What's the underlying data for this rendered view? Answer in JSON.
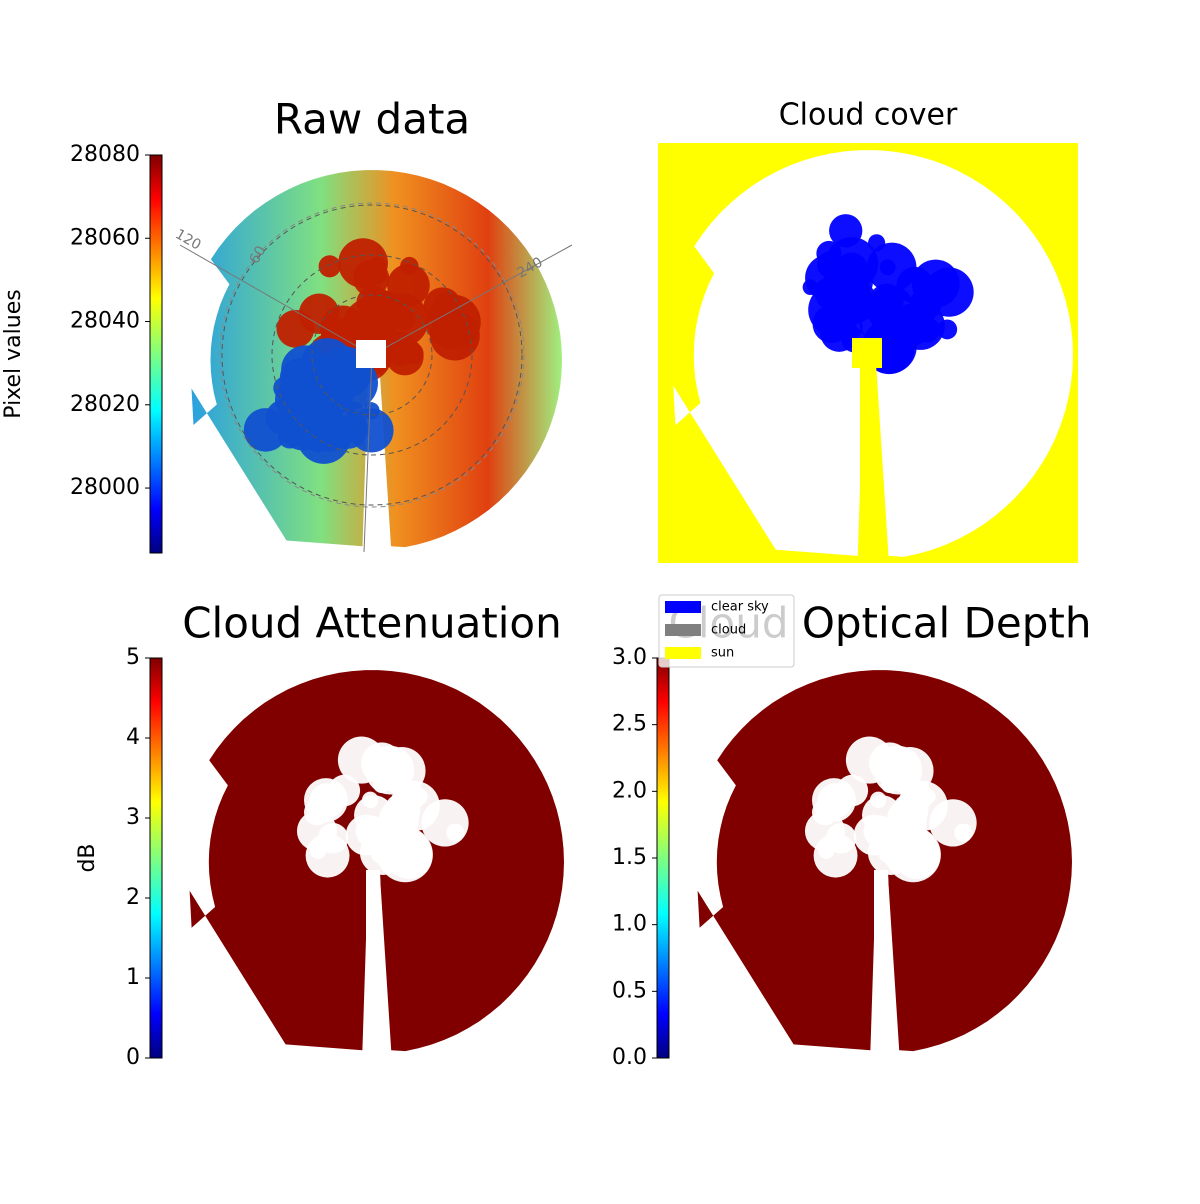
{
  "chart_data": [
    {
      "type": "image",
      "title": "Raw data",
      "colorbar_label": "Pixel values",
      "colormap": "jet",
      "ylim": [
        27984.4,
        28080
      ],
      "yticks": [
        28000,
        28020,
        28040,
        28060,
        28080
      ],
      "polar_labels": [
        "120",
        "60",
        "240"
      ]
    },
    {
      "type": "classes",
      "title": "Cloud cover",
      "background": "#ffff00",
      "legend": [
        {
          "name": "clear sky",
          "color": "#0000ff"
        },
        {
          "name": "cloud",
          "color": "#808080"
        },
        {
          "name": "sun",
          "color": "#ffff00"
        }
      ],
      "legend_position": "lower left"
    },
    {
      "type": "image",
      "title": "Cloud Attenuation",
      "colorbar_label": "dB",
      "colormap": "jet",
      "color": "#800000",
      "ylim": [
        0,
        5
      ],
      "yticks": [
        0,
        1,
        2,
        3,
        4,
        5
      ]
    },
    {
      "type": "image",
      "title": "Cloud Optical Depth",
      "colormap": "jet",
      "color": "#800000",
      "ylim": [
        0,
        3
      ],
      "yticks": [
        {
          "value": 0,
          "label": "0.0"
        },
        0.5,
        {
          "value": 1,
          "label": "1.0"
        },
        1.5,
        {
          "value": 2,
          "label": "2.0"
        },
        2.5,
        {
          "value": 3,
          "label": "3.0"
        }
      ]
    }
  ]
}
